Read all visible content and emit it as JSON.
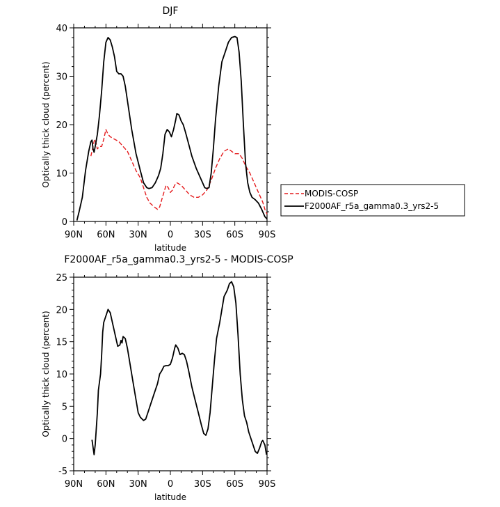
{
  "chart_data": [
    {
      "type": "line",
      "title": "DJF",
      "xlabel": "latitude",
      "ylabel": "Optically thick cloud (percent)",
      "xlim": [
        90,
        -90
      ],
      "ylim": [
        0,
        40
      ],
      "x_ticks": [
        90,
        60,
        30,
        0,
        -30,
        -60,
        -90
      ],
      "x_tick_labels": [
        "90N",
        "60N",
        "30N",
        "0",
        "30S",
        "60S",
        "90S"
      ],
      "y_ticks": [
        0,
        10,
        20,
        30,
        40
      ],
      "y_tick_labels": [
        "0",
        "10",
        "20",
        "30",
        "40"
      ],
      "legend": "outside-right",
      "series": [
        {
          "name": "MODIS-COSP",
          "color": "#e41a1c",
          "dash": true,
          "points": [
            [
              74,
              13.5
            ],
            [
              71,
              16.5
            ],
            [
              70,
              17.0
            ],
            [
              68,
              15.0
            ],
            [
              66,
              15.5
            ],
            [
              64,
              15.5
            ],
            [
              62,
              17.0
            ],
            [
              60,
              19.0
            ],
            [
              58,
              18.0
            ],
            [
              56,
              17.5
            ],
            [
              52,
              17.0
            ],
            [
              48,
              16.5
            ],
            [
              44,
              15.5
            ],
            [
              40,
              14.5
            ],
            [
              36,
              12.5
            ],
            [
              32,
              10.5
            ],
            [
              28,
              9.0
            ],
            [
              25,
              7.0
            ],
            [
              22,
              5.0
            ],
            [
              19,
              3.8
            ],
            [
              15,
              3.0
            ],
            [
              12,
              2.5
            ],
            [
              10,
              3.0
            ],
            [
              8,
              4.5
            ],
            [
              6,
              6.0
            ],
            [
              4,
              7.5
            ],
            [
              2,
              7.0
            ],
            [
              0,
              6.0
            ],
            [
              -2,
              6.5
            ],
            [
              -4,
              7.5
            ],
            [
              -6,
              8.0
            ],
            [
              -10,
              7.5
            ],
            [
              -14,
              6.5
            ],
            [
              -18,
              5.5
            ],
            [
              -22,
              5.0
            ],
            [
              -26,
              5.0
            ],
            [
              -30,
              5.5
            ],
            [
              -34,
              6.5
            ],
            [
              -38,
              8.5
            ],
            [
              -42,
              11.0
            ],
            [
              -46,
              13.0
            ],
            [
              -50,
              14.5
            ],
            [
              -54,
              15.0
            ],
            [
              -57,
              14.5
            ],
            [
              -60,
              14.0
            ],
            [
              -64,
              14.0
            ],
            [
              -67,
              13.0
            ],
            [
              -70,
              11.5
            ],
            [
              -74,
              10.0
            ],
            [
              -78,
              8.0
            ],
            [
              -82,
              6.0
            ],
            [
              -86,
              4.0
            ],
            [
              -88,
              2.5
            ],
            [
              -90,
              1.5
            ]
          ]
        },
        {
          "name": "F2000AF_r5a_gamma0.3_yrs2-5",
          "color": "#000000",
          "dash": false,
          "points": [
            [
              87,
              0.2
            ],
            [
              85,
              2.0
            ],
            [
              82,
              5.0
            ],
            [
              79,
              10.5
            ],
            [
              76,
              14.5
            ],
            [
              74,
              16.5
            ],
            [
              73,
              16.8
            ],
            [
              72,
              15.0
            ],
            [
              71,
              14.3
            ],
            [
              70,
              15.5
            ],
            [
              68,
              18.0
            ],
            [
              66,
              22.0
            ],
            [
              64,
              27.0
            ],
            [
              62,
              33.0
            ],
            [
              60,
              37.0
            ],
            [
              58,
              38.0
            ],
            [
              56,
              37.5
            ],
            [
              54,
              36.0
            ],
            [
              52,
              34.0
            ],
            [
              50,
              31.0
            ],
            [
              48,
              30.5
            ],
            [
              46,
              30.5
            ],
            [
              44,
              30.0
            ],
            [
              42,
              28.0
            ],
            [
              40,
              25.0
            ],
            [
              36,
              19.0
            ],
            [
              32,
              14.0
            ],
            [
              28,
              10.5
            ],
            [
              25,
              8.0
            ],
            [
              22,
              7.0
            ],
            [
              20,
              6.8
            ],
            [
              17,
              7.0
            ],
            [
              14,
              8.0
            ],
            [
              11,
              9.5
            ],
            [
              9,
              11.0
            ],
            [
              7,
              14.0
            ],
            [
              5,
              18.0
            ],
            [
              3,
              19.0
            ],
            [
              1,
              18.5
            ],
            [
              -1,
              17.5
            ],
            [
              -3,
              19.0
            ],
            [
              -5,
              21.0
            ],
            [
              -6,
              22.3
            ],
            [
              -8,
              22.0
            ],
            [
              -10,
              20.8
            ],
            [
              -12,
              20.0
            ],
            [
              -14,
              18.5
            ],
            [
              -17,
              16.0
            ],
            [
              -20,
              13.5
            ],
            [
              -24,
              11.0
            ],
            [
              -28,
              9.0
            ],
            [
              -32,
              7.0
            ],
            [
              -34,
              6.8
            ],
            [
              -36,
              7.0
            ],
            [
              -38,
              10.0
            ],
            [
              -40,
              15.0
            ],
            [
              -42,
              21.0
            ],
            [
              -45,
              28.0
            ],
            [
              -48,
              33.0
            ],
            [
              -51,
              35.0
            ],
            [
              -54,
              37.0
            ],
            [
              -57,
              38.0
            ],
            [
              -60,
              38.2
            ],
            [
              -62,
              38.0
            ],
            [
              -64,
              35.0
            ],
            [
              -66,
              29.0
            ],
            [
              -68,
              20.0
            ],
            [
              -70,
              12.0
            ],
            [
              -72,
              8.0
            ],
            [
              -74,
              6.0
            ],
            [
              -76,
              5.0
            ],
            [
              -79,
              4.5
            ],
            [
              -82,
              3.8
            ],
            [
              -85,
              2.5
            ],
            [
              -88,
              1.0
            ],
            [
              -90,
              0.5
            ]
          ]
        }
      ]
    },
    {
      "type": "line",
      "title": "F2000AF_r5a_gamma0.3_yrs2-5 - MODIS-COSP",
      "xlabel": "latitude",
      "ylabel": "Optically thick cloud (percent)",
      "xlim": [
        90,
        -90
      ],
      "ylim": [
        -5,
        25
      ],
      "x_ticks": [
        90,
        60,
        30,
        0,
        -30,
        -60,
        -90
      ],
      "x_tick_labels": [
        "90N",
        "60N",
        "30N",
        "0",
        "30S",
        "60S",
        "90S"
      ],
      "y_ticks": [
        -5,
        0,
        5,
        10,
        15,
        20,
        25
      ],
      "y_tick_labels": [
        "-5",
        "0",
        "5",
        "10",
        "15",
        "20",
        "25"
      ],
      "series": [
        {
          "color": "#000000",
          "dash": false,
          "points": [
            [
              73,
              -0.2
            ],
            [
              71,
              -2.5
            ],
            [
              70,
              -1.0
            ],
            [
              68,
              4.0
            ],
            [
              67,
              7.5
            ],
            [
              65,
              10.0
            ],
            [
              64,
              13.0
            ],
            [
              63,
              16.5
            ],
            [
              62,
              18.0
            ],
            [
              60,
              19.0
            ],
            [
              58,
              20.0
            ],
            [
              56,
              19.5
            ],
            [
              54,
              18.0
            ],
            [
              52,
              16.5
            ],
            [
              50,
              15.0
            ],
            [
              49,
              14.3
            ],
            [
              47,
              14.5
            ],
            [
              46,
              15.2
            ],
            [
              45,
              14.8
            ],
            [
              44,
              15.8
            ],
            [
              42,
              15.5
            ],
            [
              40,
              14.0
            ],
            [
              38,
              12.0
            ],
            [
              35,
              9.0
            ],
            [
              32,
              6.0
            ],
            [
              30,
              4.0
            ],
            [
              28,
              3.3
            ],
            [
              25,
              2.8
            ],
            [
              23,
              3.0
            ],
            [
              21,
              4.0
            ],
            [
              18,
              5.5
            ],
            [
              15,
              7.0
            ],
            [
              12,
              8.5
            ],
            [
              10,
              10.0
            ],
            [
              8,
              10.5
            ],
            [
              6,
              11.2
            ],
            [
              4,
              11.3
            ],
            [
              2,
              11.3
            ],
            [
              0,
              11.5
            ],
            [
              -2,
              12.5
            ],
            [
              -4,
              14.0
            ],
            [
              -5,
              14.5
            ],
            [
              -7,
              14.0
            ],
            [
              -9,
              13.0
            ],
            [
              -11,
              13.2
            ],
            [
              -13,
              13.0
            ],
            [
              -15,
              12.0
            ],
            [
              -17,
              10.5
            ],
            [
              -20,
              8.0
            ],
            [
              -23,
              6.0
            ],
            [
              -26,
              4.0
            ],
            [
              -29,
              2.0
            ],
            [
              -31,
              0.8
            ],
            [
              -33,
              0.5
            ],
            [
              -35,
              1.5
            ],
            [
              -37,
              4.0
            ],
            [
              -39,
              8.0
            ],
            [
              -41,
              12.0
            ],
            [
              -43,
              15.5
            ],
            [
              -46,
              18.0
            ],
            [
              -48,
              20.0
            ],
            [
              -50,
              22.0
            ],
            [
              -53,
              23.0
            ],
            [
              -55,
              24.0
            ],
            [
              -57,
              24.3
            ],
            [
              -59,
              23.5
            ],
            [
              -61,
              21.0
            ],
            [
              -63,
              16.0
            ],
            [
              -65,
              10.0
            ],
            [
              -67,
              6.0
            ],
            [
              -69,
              3.5
            ],
            [
              -71,
              2.5
            ],
            [
              -73,
              1.0
            ],
            [
              -75,
              0.0
            ],
            [
              -77,
              -1.0
            ],
            [
              -79,
              -2.0
            ],
            [
              -81,
              -2.3
            ],
            [
              -83,
              -1.5
            ],
            [
              -85,
              -0.5
            ],
            [
              -86,
              -0.3
            ],
            [
              -88,
              -1.0
            ],
            [
              -89.5,
              -2.5
            ]
          ]
        }
      ]
    }
  ]
}
